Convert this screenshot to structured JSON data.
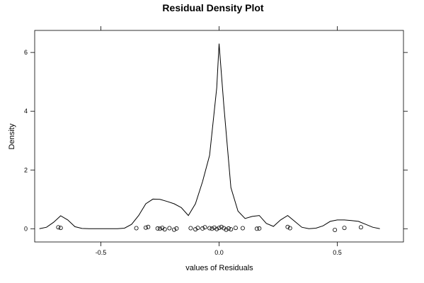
{
  "chart_data": {
    "type": "line",
    "title": "Residual Density Plot",
    "xlabel": "values of Residuals",
    "ylabel": "Density",
    "xlim": [
      -0.78,
      0.78
    ],
    "ylim": [
      -0.45,
      6.75
    ],
    "x_ticks": [
      -0.5,
      0.0,
      0.5
    ],
    "x_tick_labels": [
      "-0.5",
      "0.0",
      "0.5"
    ],
    "y_ticks": [
      0,
      2,
      4,
      6
    ],
    "y_tick_labels": [
      "0",
      "2",
      "4",
      "6"
    ],
    "grid": false,
    "legend": "none",
    "series": [
      {
        "kind": "density-line",
        "x": [
          -0.76,
          -0.73,
          -0.7,
          -0.67,
          -0.64,
          -0.61,
          -0.58,
          -0.55,
          -0.52,
          -0.49,
          -0.46,
          -0.43,
          -0.4,
          -0.37,
          -0.34,
          -0.31,
          -0.28,
          -0.25,
          -0.22,
          -0.19,
          -0.16,
          -0.13,
          -0.1,
          -0.07,
          -0.04,
          -0.01,
          0.0,
          0.02,
          0.05,
          0.08,
          0.11,
          0.14,
          0.17,
          0.2,
          0.23,
          0.26,
          0.29,
          0.32,
          0.35,
          0.38,
          0.41,
          0.44,
          0.47,
          0.5,
          0.53,
          0.56,
          0.59,
          0.62,
          0.65,
          0.68
        ],
        "y": [
          0.0,
          0.05,
          0.22,
          0.44,
          0.3,
          0.07,
          0.01,
          0.0,
          0.0,
          0.0,
          0.0,
          0.0,
          0.02,
          0.15,
          0.45,
          0.85,
          1.01,
          1.0,
          0.93,
          0.85,
          0.72,
          0.45,
          0.85,
          1.6,
          2.5,
          4.8,
          6.3,
          4.2,
          1.4,
          0.6,
          0.35,
          0.42,
          0.45,
          0.18,
          0.08,
          0.3,
          0.45,
          0.25,
          0.05,
          0.0,
          0.02,
          0.1,
          0.25,
          0.3,
          0.3,
          0.28,
          0.25,
          0.15,
          0.05,
          0.0
        ]
      },
      {
        "kind": "rug-points",
        "x": [
          -0.68,
          -0.67,
          -0.35,
          -0.31,
          -0.3,
          -0.26,
          -0.25,
          -0.24,
          -0.23,
          -0.21,
          -0.19,
          -0.18,
          -0.12,
          -0.1,
          -0.09,
          -0.07,
          -0.06,
          -0.04,
          -0.03,
          -0.02,
          -0.01,
          0.0,
          0.01,
          0.02,
          0.03,
          0.04,
          0.05,
          0.07,
          0.1,
          0.16,
          0.17,
          0.29,
          0.3,
          0.49,
          0.53,
          0.6
        ],
        "y": [
          0.05,
          0.03,
          0.02,
          0.04,
          0.06,
          0.01,
          0.0,
          0.03,
          -0.02,
          0.02,
          -0.03,
          0.01,
          0.02,
          -0.02,
          0.03,
          0.01,
          0.05,
          0.02,
          0.0,
          0.04,
          -0.01,
          0.03,
          0.06,
          0.02,
          -0.03,
          0.01,
          -0.02,
          0.03,
          0.02,
          0.0,
          0.01,
          0.06,
          0.02,
          -0.04,
          0.03,
          0.05
        ]
      }
    ]
  }
}
